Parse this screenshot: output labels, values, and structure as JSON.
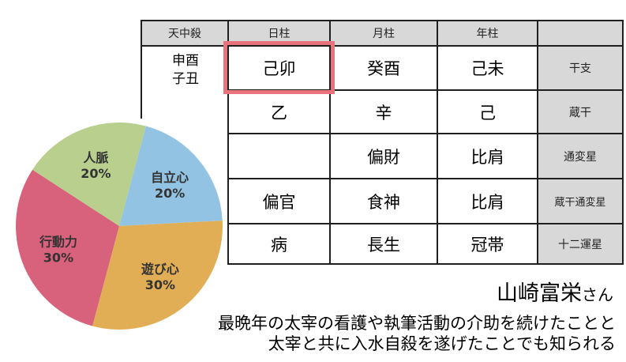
{
  "chart_data": {
    "type": "pie",
    "labels": [
      "自立心",
      "遊び心",
      "行動力",
      "人脈"
    ],
    "values": [
      20,
      30,
      30,
      20
    ],
    "unit": "%",
    "colors": [
      "#92c3e2",
      "#e2ae55",
      "#d8617c",
      "#b8cf8e"
    ],
    "start_angle_deg": 15,
    "direction": "clockwise",
    "label_text_color": "#333333",
    "legend": "none",
    "labels_inside": true
  },
  "table": {
    "header": {
      "tenchusatsu": "天中殺",
      "day": "日柱",
      "month": "月柱",
      "year": "年柱",
      "labels_col": ""
    },
    "tenchusatsu_value": {
      "line1": "申酉",
      "line2": "子丑"
    },
    "row_labels": {
      "kanshi": "干支",
      "zokan": "蔵干",
      "tsuhensei": "通変星",
      "zokan_tsuhensei": "蔵干通変星",
      "juni_unsei": "十二運星"
    },
    "day": {
      "kanshi": "己卯",
      "zokan": "乙",
      "tsuhensei": "",
      "zokan_tsuhensei": "偏官",
      "juni_unsei": "病"
    },
    "month": {
      "kanshi": "癸酉",
      "zokan": "辛",
      "tsuhensei": "偏財",
      "zokan_tsuhensei": "食神",
      "juni_unsei": "長生"
    },
    "year": {
      "kanshi": "己未",
      "zokan": "己",
      "tsuhensei": "比肩",
      "zokan_tsuhensei": "比肩",
      "juni_unsei": "冠帯"
    },
    "highlight_color": "#e8737c",
    "header_bg": "#d8d8d8",
    "border_color": "#1f1f1f"
  },
  "caption": {
    "name": "山崎富栄",
    "honorific": "さん",
    "line1": "最晩年の太宰の看護や執筆活動の介助を続けたことと",
    "line2": "太宰と共に入水自殺を遂げたことでも知られる"
  }
}
